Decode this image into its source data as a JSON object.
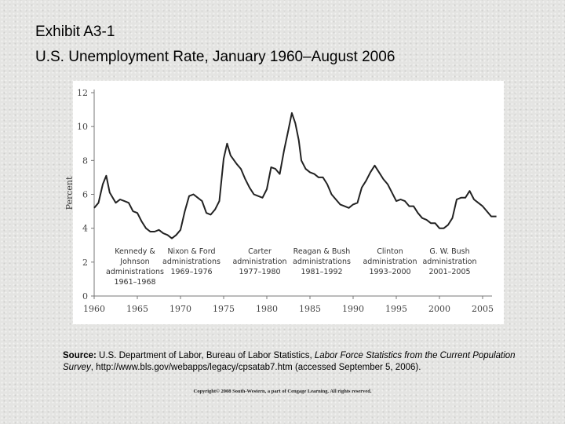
{
  "title_lines": [
    "Exhibit A3-1",
    "U.S. Unemployment Rate, January 1960–August 2006"
  ],
  "chart_data": {
    "type": "line",
    "y_label": "Percent",
    "x": [
      1960.0,
      1960.5,
      1961.0,
      1961.4,
      1961.8,
      1962.5,
      1963.0,
      1963.5,
      1964.0,
      1964.5,
      1965.0,
      1965.5,
      1966.0,
      1966.5,
      1967.0,
      1967.5,
      1968.0,
      1968.5,
      1969.0,
      1969.5,
      1970.0,
      1970.5,
      1971.0,
      1971.5,
      1972.0,
      1972.5,
      1973.0,
      1973.5,
      1974.0,
      1974.5,
      1975.0,
      1975.4,
      1975.8,
      1976.5,
      1977.0,
      1977.5,
      1978.0,
      1978.5,
      1979.0,
      1979.5,
      1980.0,
      1980.5,
      1981.0,
      1981.5,
      1982.0,
      1982.5,
      1982.9,
      1983.3,
      1983.7,
      1984.0,
      1984.5,
      1985.0,
      1985.5,
      1986.0,
      1986.5,
      1987.0,
      1987.5,
      1988.0,
      1988.5,
      1989.0,
      1989.5,
      1990.0,
      1990.5,
      1991.0,
      1991.5,
      1992.0,
      1992.5,
      1993.0,
      1993.5,
      1994.0,
      1994.5,
      1995.0,
      1995.5,
      1996.0,
      1996.5,
      1997.0,
      1997.5,
      1998.0,
      1998.5,
      1999.0,
      1999.5,
      2000.0,
      2000.5,
      2001.0,
      2001.5,
      2002.0,
      2002.5,
      2003.0,
      2003.5,
      2004.0,
      2004.5,
      2005.0,
      2005.5,
      2006.0,
      2006.6
    ],
    "series": [
      {
        "color": "#222222",
        "values": [
          5.2,
          5.5,
          6.6,
          7.1,
          6.1,
          5.5,
          5.7,
          5.6,
          5.5,
          5.0,
          4.9,
          4.4,
          4.0,
          3.8,
          3.8,
          3.9,
          3.7,
          3.6,
          3.4,
          3.6,
          3.9,
          5.0,
          5.9,
          6.0,
          5.8,
          5.6,
          4.9,
          4.8,
          5.1,
          5.6,
          8.1,
          9.0,
          8.3,
          7.8,
          7.5,
          6.9,
          6.4,
          6.0,
          5.9,
          5.8,
          6.3,
          7.6,
          7.5,
          7.2,
          8.6,
          9.8,
          10.8,
          10.2,
          9.2,
          8.0,
          7.5,
          7.3,
          7.2,
          7.0,
          7.0,
          6.6,
          6.0,
          5.7,
          5.4,
          5.3,
          5.2,
          5.4,
          5.5,
          6.4,
          6.8,
          7.3,
          7.7,
          7.3,
          6.9,
          6.6,
          6.1,
          5.6,
          5.7,
          5.6,
          5.3,
          5.3,
          4.9,
          4.6,
          4.5,
          4.3,
          4.3,
          4.0,
          4.0,
          4.2,
          4.6,
          5.7,
          5.8,
          5.8,
          6.2,
          5.7,
          5.5,
          5.3,
          5.0,
          4.7,
          4.7
        ]
      }
    ],
    "xlim": [
      1960,
      2007
    ],
    "ylim": [
      0,
      12
    ],
    "xticks": [
      1960,
      1965,
      1970,
      1975,
      1980,
      1985,
      1990,
      1995,
      2000,
      2005
    ],
    "yticks": [
      0,
      2,
      4,
      6,
      8,
      10,
      12
    ],
    "grid": false,
    "annotations": [
      [
        "Kennedy &",
        "Johnson",
        "administrations",
        "1961–1968"
      ],
      [
        "Nixon & Ford",
        "administrations",
        "1969–1976"
      ],
      [
        "Carter",
        "administration",
        "1977–1980"
      ],
      [
        "Reagan & Bush",
        "administrations",
        "1981–1992"
      ],
      [
        "Clinton",
        "administration",
        "1993–2000"
      ],
      [
        "G. W. Bush",
        "administration",
        "2001–2005"
      ]
    ]
  },
  "source": {
    "label": "Source:",
    "text1": " U.S. Department of Labor, Bureau of Labor Statistics, ",
    "italic": "Labor Force Statistics from the Current Population Survey",
    "text2": ", http://www.bls.gov/webapps/legacy/cpsatab7.htm (accessed September 5, 2006)."
  },
  "copyright": "Copyright© 2008 South-Western, a part of Cengage Learning. All rights reserved."
}
